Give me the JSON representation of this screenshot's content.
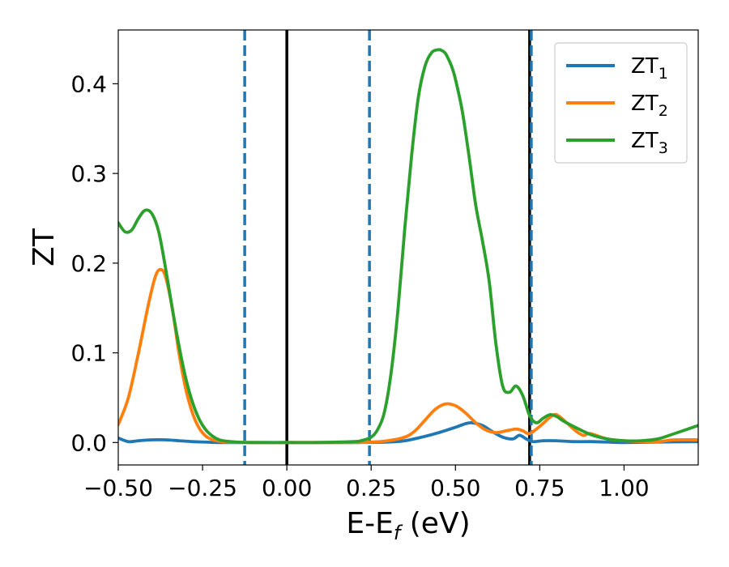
{
  "chart_data": {
    "type": "line",
    "xlabel": "E-E",
    "xlabel_sub": "f",
    "xlabel_unit": " (eV)",
    "ylabel": "ZT",
    "xlim": [
      -0.5,
      1.22
    ],
    "ylim": [
      -0.025,
      0.46
    ],
    "x_ticks": [
      -0.5,
      -0.25,
      0.0,
      0.25,
      0.5,
      0.75,
      1.0
    ],
    "x_tick_labels": [
      "−0.50",
      "−0.25",
      "0.00",
      "0.25",
      "0.50",
      "0.75",
      "1.00"
    ],
    "y_ticks": [
      0.0,
      0.1,
      0.2,
      0.3,
      0.4
    ],
    "y_tick_labels": [
      "0.0",
      "0.1",
      "0.2",
      "0.3",
      "0.4"
    ],
    "grid": false,
    "legend_position": "top-right",
    "vertical_lines": [
      {
        "x": -0.125,
        "style": "dashed",
        "color": "#1f77b4"
      },
      {
        "x": 0.0,
        "style": "solid",
        "color": "#000000"
      },
      {
        "x": 0.245,
        "style": "dashed",
        "color": "#1f77b4"
      },
      {
        "x": 0.72,
        "style": "solid",
        "color": "#000000"
      },
      {
        "x": 0.725,
        "style": "dashed",
        "color": "#1f77b4"
      }
    ],
    "series": [
      {
        "name": "ZT",
        "sub": "1",
        "color": "#1f77b4",
        "x": [
          -0.5,
          -0.47,
          -0.44,
          -0.4,
          -0.36,
          -0.32,
          -0.28,
          -0.24,
          -0.2,
          -0.1,
          0.0,
          0.1,
          0.2,
          0.3,
          0.35,
          0.4,
          0.45,
          0.5,
          0.53,
          0.55,
          0.58,
          0.61,
          0.64,
          0.67,
          0.69,
          0.71,
          0.73,
          0.76,
          0.8,
          0.85,
          0.9,
          0.95,
          1.0,
          1.1,
          1.22
        ],
        "y": [
          0.005,
          0.001,
          0.002,
          0.003,
          0.003,
          0.002,
          0.001,
          0.0005,
          0.0,
          0.0,
          0.0,
          0.0,
          0.0,
          0.0005,
          0.002,
          0.006,
          0.011,
          0.017,
          0.021,
          0.022,
          0.019,
          0.012,
          0.006,
          0.004,
          0.008,
          0.004,
          0.001,
          0.002,
          0.002,
          0.001,
          0.001,
          0.0005,
          0.0,
          0.0005,
          0.001
        ]
      },
      {
        "name": "ZT",
        "sub": "2",
        "color": "#ff7f0e",
        "x": [
          -0.5,
          -0.47,
          -0.44,
          -0.41,
          -0.39,
          -0.375,
          -0.36,
          -0.34,
          -0.32,
          -0.3,
          -0.28,
          -0.26,
          -0.24,
          -0.22,
          -0.2,
          -0.18,
          -0.1,
          0.0,
          0.1,
          0.2,
          0.25,
          0.3,
          0.35,
          0.38,
          0.41,
          0.44,
          0.47,
          0.5,
          0.53,
          0.56,
          0.59,
          0.62,
          0.65,
          0.68,
          0.7,
          0.72,
          0.75,
          0.78,
          0.8,
          0.83,
          0.86,
          0.88,
          0.9,
          0.95,
          1.0,
          1.05,
          1.1,
          1.15,
          1.22
        ],
        "y": [
          0.02,
          0.05,
          0.1,
          0.155,
          0.185,
          0.193,
          0.185,
          0.15,
          0.1,
          0.06,
          0.033,
          0.016,
          0.007,
          0.003,
          0.0015,
          0.0005,
          0.0,
          0.0,
          0.0,
          0.0,
          0.0005,
          0.002,
          0.006,
          0.013,
          0.025,
          0.037,
          0.043,
          0.041,
          0.033,
          0.022,
          0.014,
          0.011,
          0.013,
          0.015,
          0.013,
          0.01,
          0.018,
          0.028,
          0.031,
          0.022,
          0.012,
          0.008,
          0.01,
          0.004,
          0.002,
          0.001,
          0.001,
          0.003,
          0.003
        ]
      },
      {
        "name": "ZT",
        "sub": "3",
        "color": "#2ca02c",
        "x": [
          -0.5,
          -0.48,
          -0.46,
          -0.44,
          -0.42,
          -0.4,
          -0.38,
          -0.36,
          -0.34,
          -0.32,
          -0.3,
          -0.28,
          -0.26,
          -0.24,
          -0.22,
          -0.2,
          -0.18,
          -0.15,
          -0.1,
          0.0,
          0.1,
          0.2,
          0.22,
          0.25,
          0.27,
          0.29,
          0.31,
          0.33,
          0.35,
          0.37,
          0.39,
          0.41,
          0.43,
          0.45,
          0.46,
          0.47,
          0.48,
          0.49,
          0.5,
          0.52,
          0.54,
          0.56,
          0.58,
          0.6,
          0.62,
          0.64,
          0.66,
          0.68,
          0.7,
          0.72,
          0.74,
          0.76,
          0.78,
          0.8,
          0.82,
          0.85,
          0.9,
          0.95,
          1.0,
          1.05,
          1.1,
          1.15,
          1.22
        ],
        "y": [
          0.245,
          0.235,
          0.237,
          0.25,
          0.259,
          0.255,
          0.235,
          0.195,
          0.15,
          0.108,
          0.072,
          0.045,
          0.026,
          0.014,
          0.007,
          0.003,
          0.0015,
          0.0005,
          0.0,
          0.0,
          0.0,
          0.001,
          0.002,
          0.006,
          0.015,
          0.035,
          0.08,
          0.15,
          0.24,
          0.32,
          0.385,
          0.42,
          0.435,
          0.438,
          0.437,
          0.434,
          0.427,
          0.418,
          0.405,
          0.37,
          0.32,
          0.265,
          0.225,
          0.18,
          0.11,
          0.063,
          0.056,
          0.063,
          0.052,
          0.03,
          0.022,
          0.027,
          0.031,
          0.029,
          0.024,
          0.018,
          0.009,
          0.004,
          0.002,
          0.002,
          0.004,
          0.01,
          0.019
        ]
      }
    ]
  }
}
